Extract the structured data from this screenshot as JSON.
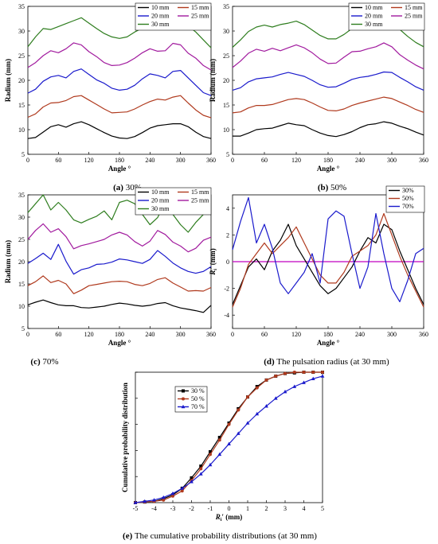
{
  "panels": [
    {
      "caption_letter": "(a)",
      "caption_text": " 30%",
      "chart_data": {
        "type": "line",
        "xlabel": "Angle °",
        "ylabel": "Radium (mm)",
        "xlim": [
          0,
          360
        ],
        "ylim": [
          5,
          35
        ],
        "xticks": [
          0,
          60,
          120,
          180,
          240,
          300,
          360
        ],
        "yticks": [
          5,
          10,
          15,
          20,
          25,
          30,
          35
        ],
        "legend_position": "top-right",
        "x": [
          0,
          15,
          30,
          45,
          60,
          75,
          90,
          105,
          120,
          135,
          150,
          165,
          180,
          195,
          210,
          225,
          240,
          255,
          270,
          285,
          300,
          315,
          330,
          345,
          360
        ],
        "series": [
          {
            "name": "10 mm",
            "color": "#000000",
            "values": [
              8.2,
              8.4,
              9.5,
              10.6,
              11.0,
              10.5,
              11.2,
              11.6,
              11.0,
              10.2,
              9.4,
              8.7,
              8.3,
              8.2,
              8.6,
              9.4,
              10.3,
              10.8,
              11.0,
              11.2,
              11.2,
              10.6,
              9.5,
              8.6,
              8.2
            ]
          },
          {
            "name": "15 mm",
            "color": "#b03a1e",
            "values": [
              12.5,
              13.2,
              14.6,
              15.4,
              15.5,
              15.9,
              16.7,
              16.9,
              16.0,
              15.1,
              14.2,
              13.4,
              13.5,
              13.6,
              14.2,
              15.0,
              15.7,
              16.2,
              16.0,
              16.6,
              16.9,
              15.4,
              14.0,
              12.9,
              12.4
            ]
          },
          {
            "name": "20 mm",
            "color": "#1a1acc",
            "values": [
              17.4,
              18.2,
              19.8,
              20.7,
              21.0,
              20.5,
              21.8,
              22.3,
              21.2,
              20.1,
              19.4,
              18.4,
              18.0,
              18.2,
              19.0,
              20.3,
              21.3,
              21.0,
              20.5,
              21.8,
              22.0,
              20.5,
              19.0,
              17.5,
              16.9
            ]
          },
          {
            "name": "25 mm",
            "color": "#a11a9e",
            "values": [
              22.6,
              23.6,
              25.0,
              26.0,
              25.6,
              26.4,
              27.6,
              27.2,
              25.8,
              24.8,
              23.6,
              23.0,
              23.1,
              23.6,
              24.5,
              25.6,
              26.4,
              25.9,
              26.0,
              27.5,
              27.2,
              25.5,
              24.5,
              23.0,
              22.1
            ]
          },
          {
            "name": "30 mm",
            "color": "#2e7d1e",
            "values": [
              26.8,
              28.8,
              30.5,
              30.3,
              30.9,
              31.5,
              32.1,
              32.7,
              31.6,
              30.5,
              29.5,
              28.8,
              28.5,
              28.8,
              29.8,
              30.6,
              31.3,
              31.5,
              31.6,
              32.6,
              32.8,
              31.0,
              29.8,
              28.2,
              26.6
            ]
          }
        ]
      }
    },
    {
      "caption_letter": "(b)",
      "caption_text": " 50%",
      "chart_data": {
        "type": "line",
        "xlabel": "Angle °",
        "ylabel": "Radium (mm)",
        "xlim": [
          0,
          360
        ],
        "ylim": [
          5,
          35
        ],
        "xticks": [
          0,
          60,
          120,
          180,
          240,
          300,
          360
        ],
        "yticks": [
          5,
          10,
          15,
          20,
          25,
          30,
          35
        ],
        "legend_position": "top-right",
        "x": [
          0,
          15,
          30,
          45,
          60,
          75,
          90,
          105,
          120,
          135,
          150,
          165,
          180,
          195,
          210,
          225,
          240,
          255,
          270,
          285,
          300,
          315,
          330,
          345,
          360
        ],
        "series": [
          {
            "name": "10 mm",
            "color": "#000000",
            "values": [
              8.7,
              8.7,
              9.3,
              10.0,
              10.2,
              10.3,
              10.8,
              11.3,
              11.0,
              10.8,
              10.0,
              9.3,
              8.8,
              8.6,
              9.0,
              9.6,
              10.4,
              11.0,
              11.2,
              11.6,
              11.3,
              10.7,
              10.2,
              9.5,
              8.9
            ]
          },
          {
            "name": "15 mm",
            "color": "#b03a1e",
            "values": [
              13.4,
              13.6,
              14.4,
              14.9,
              14.9,
              15.1,
              15.6,
              16.1,
              16.3,
              16.1,
              15.4,
              14.6,
              13.9,
              13.8,
              14.2,
              14.9,
              15.4,
              15.8,
              16.2,
              16.6,
              16.3,
              15.6,
              14.9,
              14.1,
              13.5
            ]
          },
          {
            "name": "20 mm",
            "color": "#1a1acc",
            "values": [
              18.0,
              18.5,
              19.7,
              20.3,
              20.5,
              20.7,
              21.2,
              21.6,
              21.2,
              20.8,
              20.0,
              19.1,
              18.6,
              18.7,
              19.4,
              20.2,
              20.6,
              20.8,
              21.2,
              21.7,
              21.6,
              20.6,
              19.7,
              18.7,
              18.0
            ]
          },
          {
            "name": "25 mm",
            "color": "#a11a9e",
            "values": [
              22.6,
              23.9,
              25.5,
              26.3,
              25.9,
              26.5,
              26.0,
              26.6,
              27.2,
              26.6,
              25.6,
              24.3,
              23.4,
              23.5,
              24.7,
              25.8,
              25.9,
              26.4,
              26.8,
              27.6,
              26.8,
              25.2,
              24.1,
              23.1,
              22.3
            ]
          },
          {
            "name": "30 mm",
            "color": "#2e7d1e",
            "values": [
              26.7,
              28.2,
              29.9,
              30.8,
              31.2,
              30.8,
              31.3,
              31.6,
              32.0,
              31.3,
              30.2,
              29.1,
              28.4,
              28.4,
              29.3,
              30.5,
              30.9,
              31.2,
              31.9,
              33.5,
              32.0,
              30.3,
              28.9,
              27.7,
              26.8
            ]
          }
        ]
      }
    },
    {
      "caption_letter": "(c)",
      "caption_text": " 70%",
      "chart_data": {
        "type": "line",
        "xlabel": "Angle °",
        "ylabel": "Radium (mm)",
        "xlim": [
          0,
          360
        ],
        "ylim": [
          5,
          35
        ],
        "xticks": [
          0,
          60,
          120,
          180,
          240,
          300,
          360
        ],
        "yticks": [
          5,
          10,
          15,
          20,
          25,
          30,
          35
        ],
        "legend_position": "top-right",
        "x": [
          0,
          15,
          30,
          45,
          60,
          75,
          90,
          105,
          120,
          135,
          150,
          165,
          180,
          195,
          210,
          225,
          240,
          255,
          270,
          285,
          300,
          315,
          330,
          345,
          360
        ],
        "series": [
          {
            "name": "10 mm",
            "color": "#000000",
            "values": [
              10.3,
              10.9,
              11.4,
              10.8,
              10.3,
              10.1,
              10.1,
              9.7,
              9.6,
              9.8,
              10.0,
              10.4,
              10.7,
              10.5,
              10.2,
              10.0,
              10.2,
              10.6,
              10.8,
              10.1,
              9.6,
              9.3,
              9.0,
              8.6,
              10.2
            ]
          },
          {
            "name": "15 mm",
            "color": "#b03a1e",
            "values": [
              14.6,
              15.5,
              16.8,
              15.3,
              15.8,
              15.0,
              12.8,
              13.6,
              14.6,
              14.9,
              15.2,
              15.5,
              15.6,
              15.5,
              14.9,
              14.6,
              15.1,
              16.0,
              16.4,
              15.2,
              14.3,
              13.4,
              13.5,
              13.4,
              14.2
            ]
          },
          {
            "name": "20 mm",
            "color": "#1a1acc",
            "values": [
              19.6,
              20.7,
              21.9,
              20.5,
              23.9,
              20.1,
              17.2,
              18.2,
              18.6,
              19.4,
              19.5,
              19.9,
              20.6,
              20.4,
              20.0,
              19.6,
              20.5,
              22.5,
              21.2,
              19.7,
              18.6,
              17.8,
              17.4,
              17.8,
              18.9
            ]
          },
          {
            "name": "25 mm",
            "color": "#a11a9e",
            "values": [
              25.0,
              27.0,
              28.5,
              26.6,
              27.4,
              25.6,
              22.9,
              23.6,
              24.0,
              24.5,
              25.0,
              26.0,
              26.6,
              26.0,
              24.5,
              23.5,
              24.6,
              27.0,
              26.1,
              24.4,
              23.5,
              22.2,
              23.0,
              24.8,
              25.5
            ]
          },
          {
            "name": "30 mm",
            "color": "#2e7d1e",
            "values": [
              31.0,
              33.0,
              35.0,
              31.6,
              33.3,
              31.6,
              29.4,
              28.7,
              29.5,
              30.2,
              31.4,
              29.4,
              33.3,
              33.8,
              33.0,
              30.6,
              28.3,
              29.9,
              33.3,
              30.6,
              28.3,
              26.6,
              28.8,
              30.6,
              31.6
            ]
          }
        ]
      }
    },
    {
      "caption_letter": "(d)",
      "caption_text": " The pulsation radius (at 30 mm)",
      "chart_data": {
        "type": "line",
        "xlabel": "Angle °",
        "ylabel": "R_i′ (mm)",
        "xlim": [
          0,
          360
        ],
        "ylim": [
          -5,
          5
        ],
        "xticks": [
          0,
          60,
          120,
          180,
          240,
          300,
          360
        ],
        "yticks": [
          -4,
          -2,
          0,
          2,
          4
        ],
        "legend_position": "top-right",
        "reference_line": {
          "y": 0,
          "color": "#c000c0"
        },
        "x": [
          0,
          15,
          30,
          45,
          60,
          75,
          90,
          105,
          120,
          135,
          150,
          165,
          180,
          195,
          210,
          225,
          240,
          255,
          270,
          285,
          300,
          315,
          330,
          345,
          360
        ],
        "series": [
          {
            "name": "30%",
            "color": "#000000",
            "values": [
              -3.2,
              -1.8,
              -0.4,
              0.2,
              -0.6,
              0.8,
              1.6,
              2.8,
              1.2,
              0.2,
              -0.8,
              -1.8,
              -2.4,
              -2.0,
              -1.2,
              -0.4,
              0.8,
              1.8,
              1.4,
              2.8,
              2.4,
              0.8,
              -0.6,
              -2.0,
              -3.2
            ]
          },
          {
            "name": "50%",
            "color": "#b03a1e",
            "values": [
              -3.4,
              -2.0,
              -0.2,
              0.6,
              1.4,
              0.6,
              1.2,
              1.8,
              2.6,
              1.4,
              0.2,
              -1.0,
              -1.6,
              -1.6,
              -0.8,
              0.4,
              0.8,
              1.2,
              2.0,
              3.6,
              2.0,
              0.4,
              -1.0,
              -2.2,
              -3.4
            ]
          },
          {
            "name": "70%",
            "color": "#1a1acc",
            "values": [
              0.9,
              3.0,
              4.8,
              1.4,
              2.8,
              1.0,
              -1.6,
              -2.4,
              -1.6,
              -0.8,
              0.6,
              -1.6,
              3.2,
              3.8,
              3.4,
              0.6,
              -2.0,
              -0.4,
              3.6,
              0.6,
              -2.0,
              -3.0,
              -1.4,
              0.6,
              1.0
            ]
          }
        ]
      }
    },
    {
      "caption_letter": "(e)",
      "caption_text": " The cumulative probability distributions (at 30 mm)",
      "chart_data": {
        "type": "line",
        "xlabel": "R_i′ (mm)",
        "ylabel": "Cumulative probability distribution",
        "xlim": [
          -5,
          5
        ],
        "ylim": [
          0,
          1
        ],
        "xticks": [
          -5,
          -4,
          -3,
          -2,
          -1,
          0,
          1,
          2,
          3,
          4,
          5
        ],
        "legend_position": "top-left",
        "x": [
          -5,
          -4.5,
          -4,
          -3.5,
          -3,
          -2.5,
          -2,
          -1.5,
          -1,
          -0.5,
          0,
          0.5,
          1,
          1.5,
          2,
          2.5,
          3,
          3.5,
          4,
          4.5,
          5
        ],
        "series": [
          {
            "name": "30 %",
            "color": "#000000",
            "marker": "square",
            "values": [
              0.0,
              0.005,
              0.01,
              0.03,
              0.06,
              0.11,
              0.19,
              0.28,
              0.39,
              0.5,
              0.61,
              0.72,
              0.81,
              0.89,
              0.94,
              0.97,
              0.99,
              0.995,
              1.0,
              1.0,
              1.0
            ]
          },
          {
            "name": "50 %",
            "color": "#b03a1e",
            "marker": "circle",
            "values": [
              0.0,
              0.005,
              0.01,
              0.02,
              0.05,
              0.09,
              0.17,
              0.26,
              0.37,
              0.48,
              0.6,
              0.71,
              0.81,
              0.88,
              0.94,
              0.97,
              0.99,
              1.0,
              1.0,
              1.0,
              1.0
            ]
          },
          {
            "name": "70 %",
            "color": "#1a1acc",
            "marker": "triangle",
            "values": [
              0.0,
              0.01,
              0.02,
              0.04,
              0.07,
              0.11,
              0.16,
              0.22,
              0.29,
              0.37,
              0.45,
              0.53,
              0.61,
              0.68,
              0.74,
              0.8,
              0.85,
              0.89,
              0.92,
              0.95,
              0.97
            ]
          }
        ]
      }
    }
  ]
}
